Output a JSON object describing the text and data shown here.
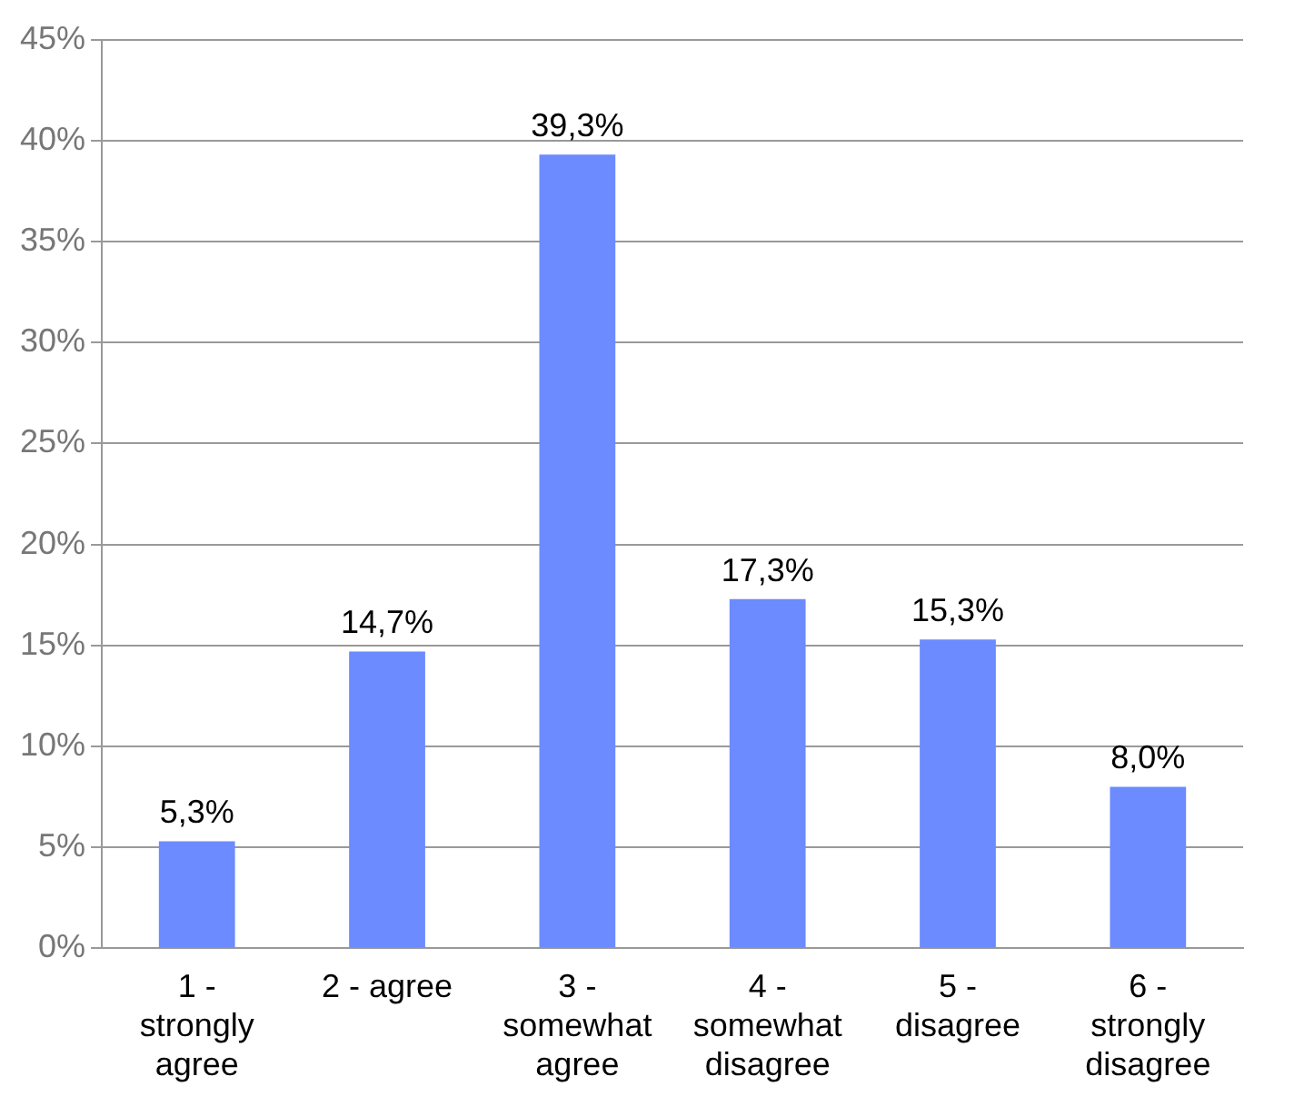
{
  "chart_data": {
    "type": "bar",
    "categories": [
      "1 - strongly agree",
      "2 - agree",
      "3 - somewhat agree",
      "4 - somewhat disagree",
      "5 - disagree",
      "6 - strongly disagree"
    ],
    "values": [
      5.3,
      14.7,
      39.3,
      17.3,
      15.3,
      8.0
    ],
    "value_labels": [
      "5,3%",
      "14,7%",
      "39,3%",
      "17,3%",
      "15,3%",
      "8,0%"
    ],
    "color": "#6b8bff",
    "ylim": [
      0,
      45
    ],
    "yticks": [
      {
        "value": 0,
        "label": "0%"
      },
      {
        "value": 5,
        "label": "5%"
      },
      {
        "value": 10,
        "label": "10%"
      },
      {
        "value": 15,
        "label": "15%"
      },
      {
        "value": 20,
        "label": "20%"
      },
      {
        "value": 25,
        "label": "25%"
      },
      {
        "value": 30,
        "label": "30%"
      },
      {
        "value": 35,
        "label": "35%"
      },
      {
        "value": 40,
        "label": "40%"
      },
      {
        "value": 45,
        "label": "45%"
      }
    ],
    "grid": "y",
    "legend": false
  }
}
